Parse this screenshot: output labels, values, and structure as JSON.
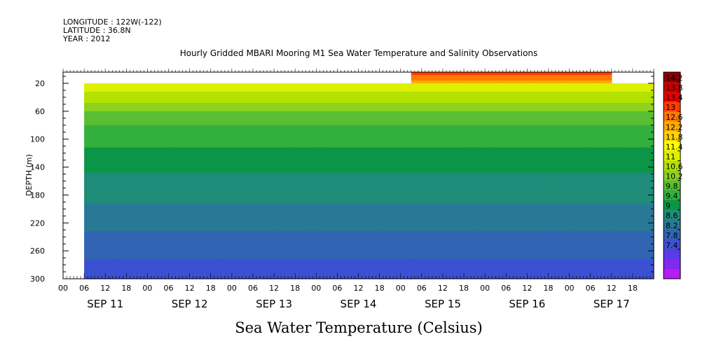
{
  "header": {
    "longitude": "LONGITUDE : 122W(-122)",
    "latitude": "LATITUDE : 36.8N",
    "year": "YEAR : 2012"
  },
  "chart_data": {
    "type": "heatmap",
    "title": "Hourly Gridded MBARI Mooring M1 Sea Water Temperature and Salinity Observations",
    "xlabel": "",
    "ylabel": "DEPTH (m)",
    "bottom_title": "Sea Water Temperature (Celsius)",
    "x_range_days": [
      0,
      7
    ],
    "x_day_labels": [
      "SEP 11",
      "SEP 12",
      "SEP 13",
      "SEP 14",
      "SEP 15",
      "SEP 16",
      "SEP 17"
    ],
    "x_hour_labels": [
      "00",
      "06",
      "12",
      "18"
    ],
    "y_range": [
      300,
      4
    ],
    "y_ticks": [
      20,
      60,
      100,
      140,
      180,
      220,
      260,
      300
    ],
    "y_reversed": true,
    "data_start_hour": 6,
    "colorbar_levels": [
      14.2,
      13.8,
      13.4,
      13,
      12.6,
      12.2,
      11.8,
      11.4,
      11,
      10.6,
      10.2,
      9.8,
      9.4,
      9,
      8.6,
      8.2,
      7.8,
      7.4
    ],
    "colorbar_colors": [
      "#8c0000",
      "#c80000",
      "#e40000",
      "#ff3c00",
      "#ff7800",
      "#ffaa00",
      "#ffd200",
      "#ffff00",
      "#dcf000",
      "#b4e100",
      "#8cd21e",
      "#5abe32",
      "#32af3c",
      "#0a9646",
      "#1e8c78",
      "#287896",
      "#3264b4",
      "#3c50d2",
      "#5a3ce6",
      "#8228f0",
      "#b41ef0"
    ],
    "profile": [
      {
        "depth": 10,
        "temp": 13.0
      },
      {
        "depth": 20,
        "temp": 12.1
      },
      {
        "depth": 40,
        "temp": 11.6
      },
      {
        "depth": 60,
        "temp": 11.0
      },
      {
        "depth": 80,
        "temp": 10.6
      },
      {
        "depth": 100,
        "temp": 10.3
      },
      {
        "depth": 120,
        "temp": 10.1
      },
      {
        "depth": 140,
        "temp": 9.85
      },
      {
        "depth": 160,
        "temp": 9.7
      },
      {
        "depth": 180,
        "temp": 9.5
      },
      {
        "depth": 200,
        "temp": 9.3
      },
      {
        "depth": 220,
        "temp": 9.1
      },
      {
        "depth": 240,
        "temp": 8.9
      },
      {
        "depth": 260,
        "temp": 8.7
      },
      {
        "depth": 280,
        "temp": 8.5
      },
      {
        "depth": 300,
        "temp": 8.35
      }
    ],
    "surface_warm_periods_hours": [
      [
        98,
        155
      ],
      [
        198,
        216
      ]
    ],
    "surface_warm_temp": 14.0
  }
}
